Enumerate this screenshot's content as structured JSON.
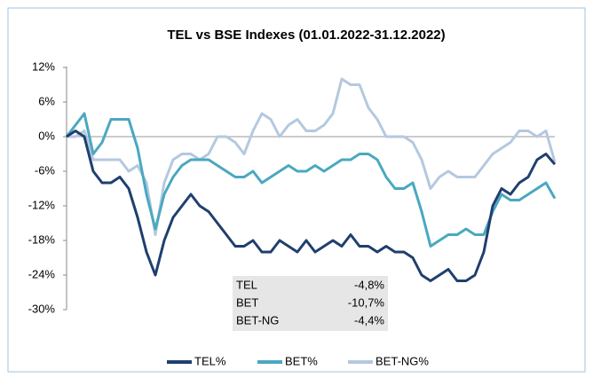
{
  "chart_data": {
    "type": "line",
    "title": "TEL vs BSE Indexes (01.01.2022-31.12.2022)",
    "ylim": [
      -30,
      12
    ],
    "yticks": [
      {
        "value": 12,
        "label": "12%"
      },
      {
        "value": 6,
        "label": "6%"
      },
      {
        "value": 0,
        "label": "0%"
      },
      {
        "value": -6,
        "label": "-6%"
      },
      {
        "value": -12,
        "label": "-12%"
      },
      {
        "value": -18,
        "label": "-18%"
      },
      {
        "value": -24,
        "label": "-24%"
      },
      {
        "value": -30,
        "label": "-30%"
      }
    ],
    "legend": "bottom",
    "series": [
      {
        "name": "TEL%",
        "color": "#1f3f6e",
        "values": [
          0,
          1,
          0,
          -6,
          -8,
          -8,
          -7,
          -9,
          -14,
          -20,
          -24,
          -18,
          -14,
          -12,
          -10,
          -12,
          -13,
          -15,
          -17,
          -19,
          -19,
          -18,
          -20,
          -20,
          -18,
          -19,
          -20,
          -18,
          -20,
          -19,
          -18,
          -19,
          -17,
          -19,
          -19,
          -20,
          -19,
          -20,
          -20,
          -21,
          -24,
          -25,
          -24,
          -23,
          -25,
          -25,
          -24,
          -20,
          -12,
          -9,
          -10,
          -8,
          -7,
          -4,
          -3,
          -4.8
        ]
      },
      {
        "name": "BET%",
        "color": "#4aa8c0",
        "values": [
          0,
          2,
          4,
          -3,
          -1,
          3,
          3,
          3,
          -2,
          -10,
          -16,
          -10,
          -7,
          -5,
          -4,
          -4,
          -4,
          -5,
          -6,
          -7,
          -7,
          -6,
          -8,
          -7,
          -6,
          -5,
          -6,
          -6,
          -5,
          -6,
          -5,
          -4,
          -4,
          -3,
          -3,
          -4,
          -7,
          -9,
          -9,
          -8,
          -13,
          -19,
          -18,
          -17,
          -17,
          -16,
          -17,
          -17,
          -13,
          -10,
          -11,
          -11,
          -10,
          -9,
          -8,
          -10.7
        ]
      },
      {
        "name": "BET-NG%",
        "color": "#b4c8e0",
        "values": [
          0,
          0,
          1,
          -4,
          -4,
          -4,
          -4,
          -6,
          -5,
          -8,
          -17,
          -8,
          -4,
          -3,
          -3,
          -4,
          -3,
          0,
          0,
          -1,
          -3,
          1,
          4,
          3,
          0,
          2,
          3,
          1,
          1,
          2,
          4,
          10,
          9,
          9,
          5,
          3,
          0,
          0,
          0,
          -1,
          -4,
          -9,
          -7,
          -6,
          -7,
          -7,
          -7,
          -5,
          -3,
          -2,
          -1,
          1,
          1,
          0,
          1,
          -4.4
        ]
      }
    ],
    "summary_table": [
      [
        "TEL",
        "-4,8%"
      ],
      [
        "BET",
        "-10,7%"
      ],
      [
        "BET-NG",
        "-4,4%"
      ]
    ]
  }
}
